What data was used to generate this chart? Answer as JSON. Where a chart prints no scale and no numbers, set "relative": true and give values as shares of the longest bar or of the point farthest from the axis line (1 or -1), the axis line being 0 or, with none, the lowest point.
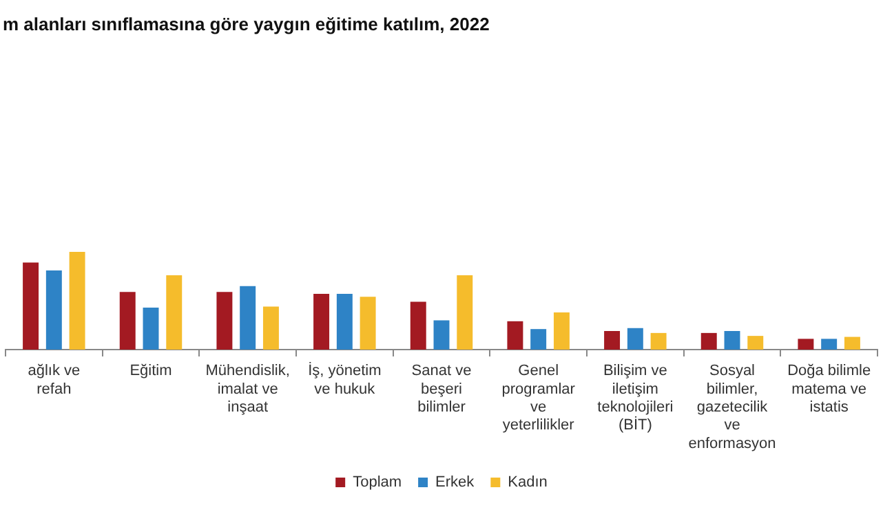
{
  "chart_data": {
    "type": "bar",
    "title": "m alanları sınıflamasına göre yaygın eğitime katılım, 2022",
    "relative": true,
    "legend": "bottom",
    "grid": false,
    "categories": [
      "ağlık ve refah",
      "Eğitim",
      "Mühendislik, imalat ve inşaat",
      "İş, yönetim ve hukuk",
      "Sanat ve beşeri bilimler",
      "Genel programlar ve yeterlilikler",
      "Bilişim ve iletişim teknolojileri (BİT)",
      "Sosyal bilimler, gazetecilik ve enformasyon",
      "Doğa bilimle matema ve istatis"
    ],
    "series": [
      {
        "name": "Toplam",
        "color": "#a31a22",
        "values": [
          0.89,
          0.59,
          0.59,
          0.57,
          0.49,
          0.29,
          0.19,
          0.17,
          0.11
        ]
      },
      {
        "name": "Erkek",
        "color": "#2e83c6",
        "values": [
          0.81,
          0.43,
          0.65,
          0.57,
          0.3,
          0.21,
          0.22,
          0.19,
          0.11
        ]
      },
      {
        "name": "Kadın",
        "color": "#f5bc2c",
        "values": [
          1,
          0.76,
          0.44,
          0.54,
          0.76,
          0.38,
          0.17,
          0.14,
          0.13
        ]
      }
    ]
  }
}
